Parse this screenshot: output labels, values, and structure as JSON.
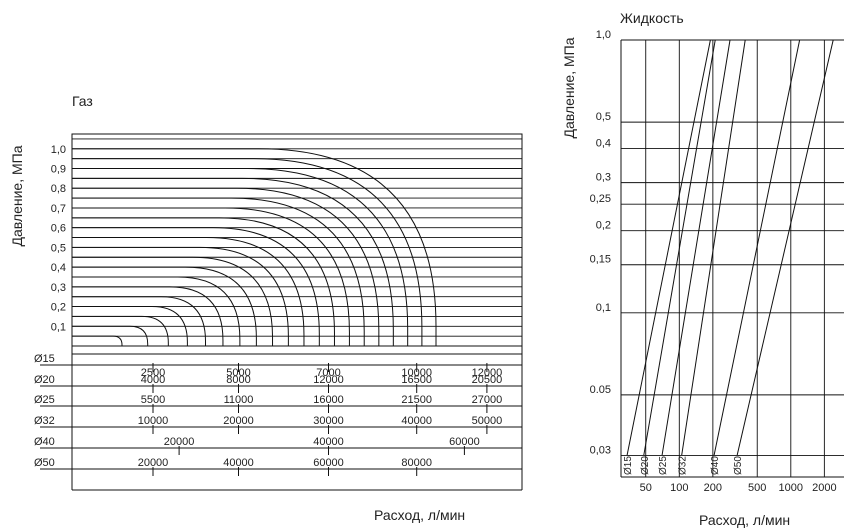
{
  "chart_data": [
    {
      "type": "line",
      "title": "Газ",
      "xlabel": "Расход, л/мин",
      "ylabel": "Давление, МПа",
      "y_ticks": [
        "0,1",
        "0,2",
        "0,3",
        "0,4",
        "0,5",
        "0,6",
        "0,7",
        "0,8",
        "0,9",
        "1,0"
      ],
      "pressure_levels": [
        0.05,
        0.1,
        0.15,
        0.2,
        0.25,
        0.3,
        0.35,
        0.4,
        0.45,
        0.5,
        0.55,
        0.6,
        0.65,
        0.7,
        0.75,
        0.8,
        0.85,
        0.9,
        0.95,
        1.0
      ],
      "scales": [
        {
          "label": "Ø15",
          "ticks": [
            {
              "text": "2500",
              "pos": 0.18
            },
            {
              "text": "5000",
              "pos": 0.37
            },
            {
              "text": "7000",
              "pos": 0.57
            },
            {
              "text": "10000",
              "pos": 0.766
            },
            {
              "text": "12000",
              "pos": 0.922
            }
          ]
        },
        {
          "label": "Ø20",
          "ticks": [
            {
              "text": "4000",
              "pos": 0.18
            },
            {
              "text": "8000",
              "pos": 0.37
            },
            {
              "text": "12000",
              "pos": 0.57
            },
            {
              "text": "16500",
              "pos": 0.766
            },
            {
              "text": "20500",
              "pos": 0.922
            }
          ]
        },
        {
          "label": "Ø25",
          "ticks": [
            {
              "text": "5500",
              "pos": 0.18
            },
            {
              "text": "11000",
              "pos": 0.37
            },
            {
              "text": "16000",
              "pos": 0.57
            },
            {
              "text": "21500",
              "pos": 0.766
            },
            {
              "text": "27000",
              "pos": 0.922
            }
          ]
        },
        {
          "label": "Ø32",
          "ticks": [
            {
              "text": "10000",
              "pos": 0.18
            },
            {
              "text": "20000",
              "pos": 0.37
            },
            {
              "text": "30000",
              "pos": 0.57
            },
            {
              "text": "40000",
              "pos": 0.766
            },
            {
              "text": "50000",
              "pos": 0.922
            }
          ]
        },
        {
          "label": "Ø40",
          "ticks": [
            {
              "text": "20000",
              "pos": 0.238
            },
            {
              "text": "40000",
              "pos": 0.57
            },
            {
              "text": "60000",
              "pos": 0.872
            }
          ]
        },
        {
          "label": "Ø50",
          "ticks": [
            {
              "text": "20000",
              "pos": 0.18
            },
            {
              "text": "40000",
              "pos": 0.37
            },
            {
              "text": "60000",
              "pos": 0.57
            },
            {
              "text": "80000",
              "pos": 0.766
            }
          ]
        }
      ]
    },
    {
      "type": "line",
      "title": "Жидкость",
      "xlabel": "Расход, л/мин",
      "ylabel": "Давление, МПа",
      "x_scale": "log",
      "y_scale": "log",
      "xlim": [
        30,
        3000
      ],
      "ylim": [
        0.025,
        1.0
      ],
      "x_ticks": [
        {
          "label": "50",
          "value": 50
        },
        {
          "label": "100",
          "value": 100
        },
        {
          "label": "200",
          "value": 200
        },
        {
          "label": "500",
          "value": 500
        },
        {
          "label": "1000",
          "value": 1000
        },
        {
          "label": "2000",
          "value": 2000
        }
      ],
      "y_ticks": [
        {
          "label": "1,0",
          "value": 1.0
        },
        {
          "label": "0,5",
          "value": 0.5
        },
        {
          "label": "0,4",
          "value": 0.4
        },
        {
          "label": "0,3",
          "value": 0.3
        },
        {
          "label": "0,25",
          "value": 0.25
        },
        {
          "label": "0,2",
          "value": 0.2
        },
        {
          "label": "0,15",
          "value": 0.15
        },
        {
          "label": "0,1",
          "value": 0.1
        },
        {
          "label": "0.05",
          "value": 0.05
        },
        {
          "label": "0,03",
          "value": 0.03
        }
      ],
      "series": [
        {
          "name": "Ø15",
          "points": [
            [
              34,
              0.03
            ],
            [
              190,
              1.0
            ]
          ]
        },
        {
          "name": "Ø20",
          "points": [
            [
              48,
              0.03
            ],
            [
              210,
              1.0
            ]
          ]
        },
        {
          "name": "Ø25",
          "points": [
            [
              70,
              0.03
            ],
            [
              285,
              1.0
            ]
          ]
        },
        {
          "name": "Ø32",
          "points": [
            [
              105,
              0.03
            ],
            [
              390,
              1.0
            ]
          ]
        },
        {
          "name": "Ø40",
          "points": [
            [
              205,
              0.03
            ],
            [
              1200,
              1.0
            ]
          ]
        },
        {
          "name": "Ø50",
          "points": [
            [
              330,
              0.03
            ],
            [
              2400,
              1.0
            ]
          ]
        }
      ]
    }
  ]
}
